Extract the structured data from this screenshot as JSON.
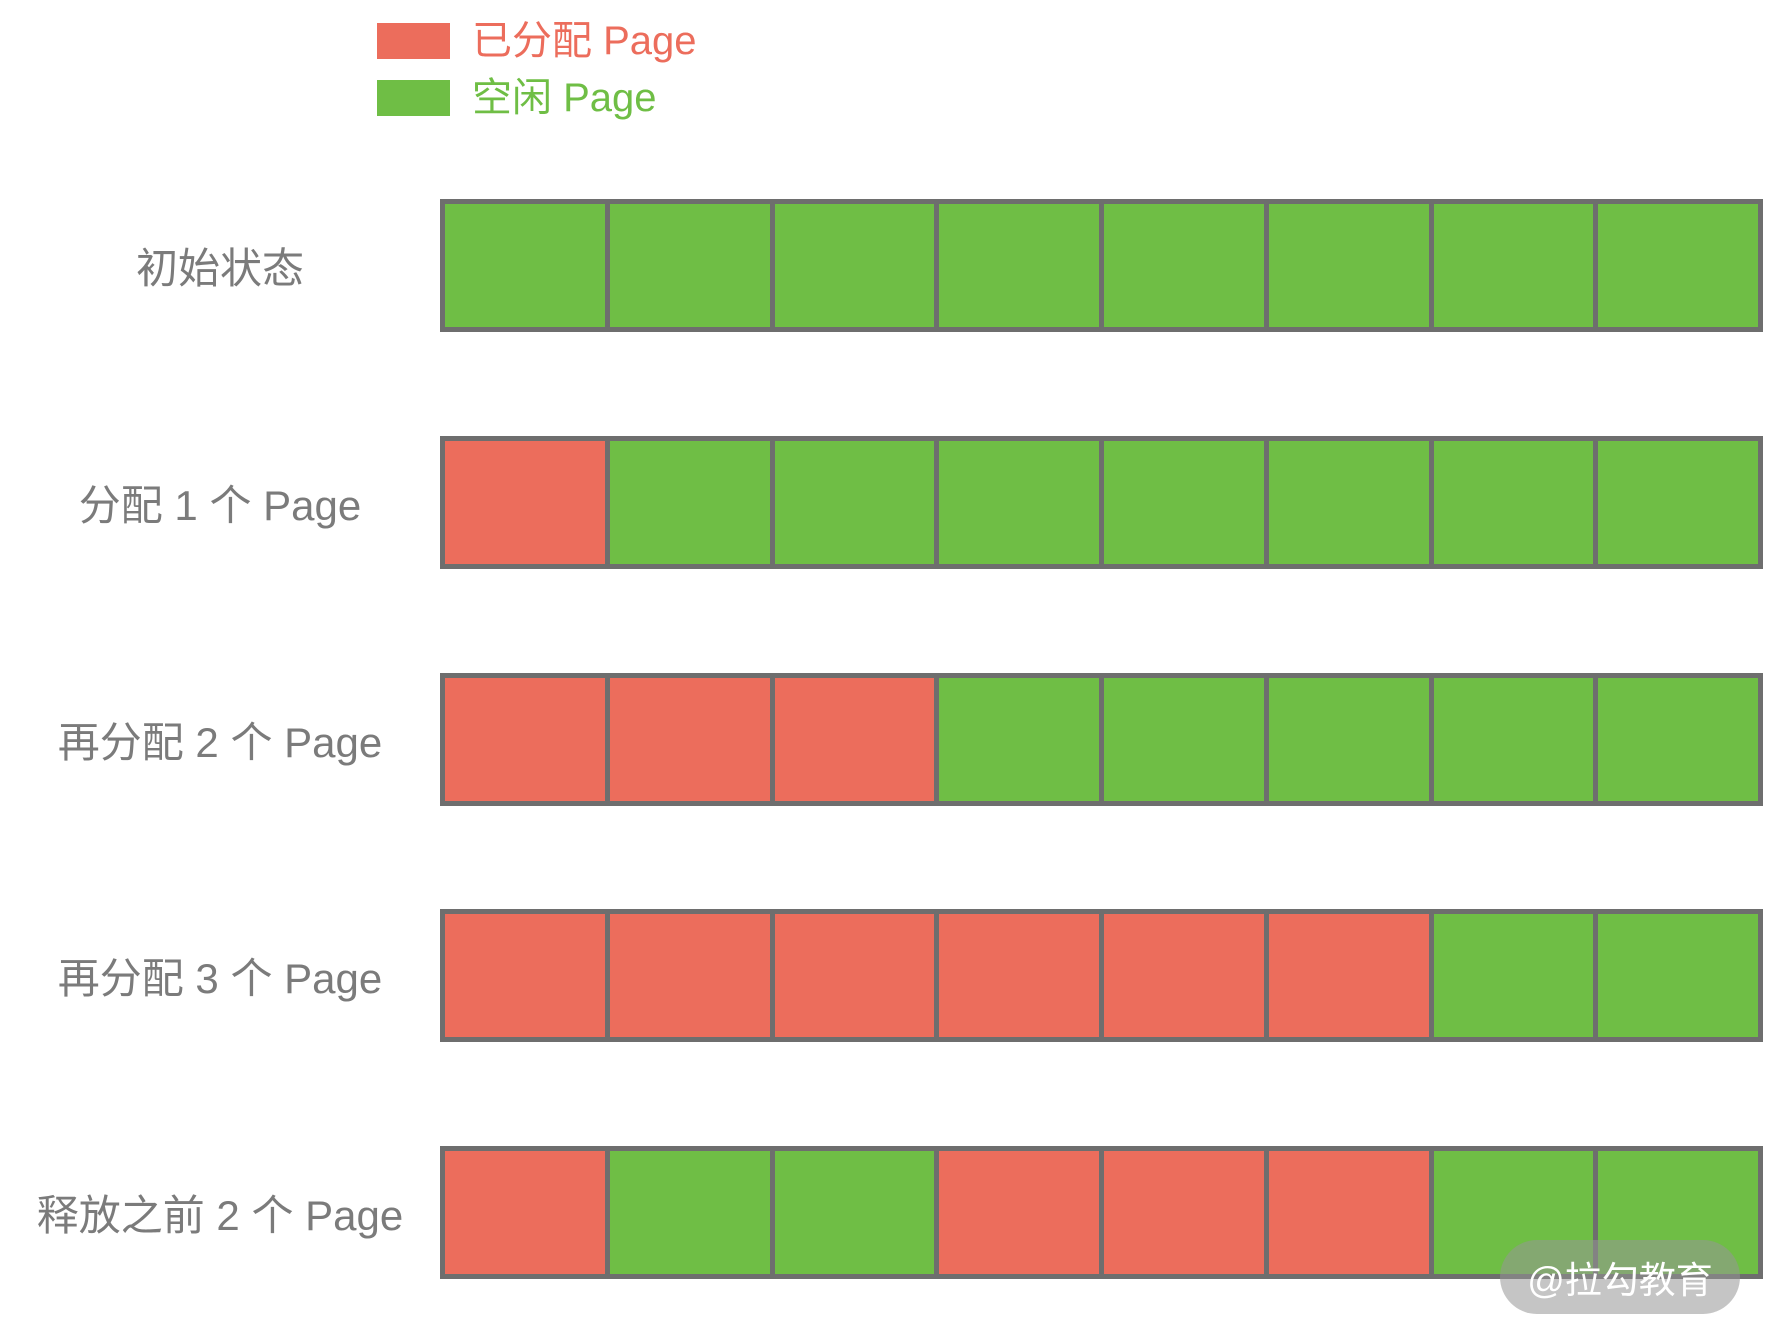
{
  "colors": {
    "allocated": "#EC6D5C",
    "free": "#6FBE45",
    "grid": "#6E6E6E",
    "label_text": "#7B7B7B",
    "watermark_text": "#FFFFFF"
  },
  "legend": {
    "items": [
      {
        "id": "allocated",
        "label": "已分配 Page",
        "color": "#EC6D5C"
      },
      {
        "id": "free",
        "label": "空闲 Page",
        "color": "#6FBE45"
      }
    ]
  },
  "rows": [
    {
      "label": "初始状态",
      "cells": [
        "free",
        "free",
        "free",
        "free",
        "free",
        "free",
        "free",
        "free"
      ]
    },
    {
      "label": "分配 1 个 Page",
      "cells": [
        "allocated",
        "free",
        "free",
        "free",
        "free",
        "free",
        "free",
        "free"
      ]
    },
    {
      "label": "再分配 2 个 Page",
      "cells": [
        "allocated",
        "allocated",
        "allocated",
        "free",
        "free",
        "free",
        "free",
        "free"
      ]
    },
    {
      "label": "再分配 3 个 Page",
      "cells": [
        "allocated",
        "allocated",
        "allocated",
        "allocated",
        "allocated",
        "allocated",
        "free",
        "free"
      ]
    },
    {
      "label": "释放之前 2 个 Page",
      "cells": [
        "allocated",
        "free",
        "free",
        "allocated",
        "allocated",
        "allocated",
        "free",
        "free"
      ]
    }
  ],
  "watermark": {
    "text": "@拉勾教育"
  }
}
